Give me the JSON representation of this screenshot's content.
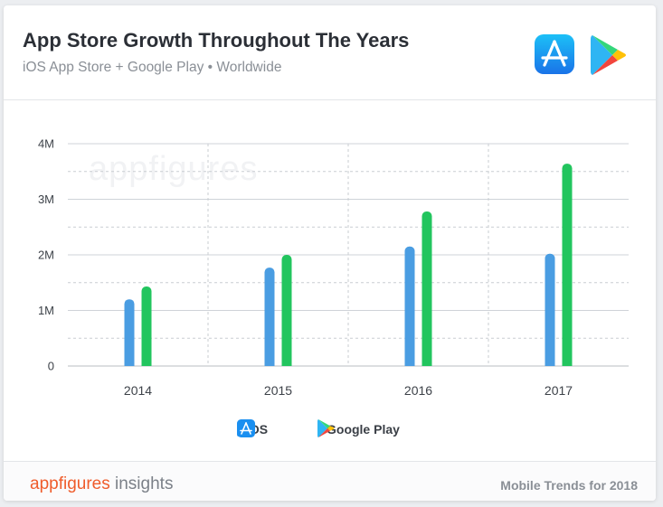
{
  "header": {
    "title": "App Store Growth Throughout The Years",
    "subtitle": "iOS App Store + Google Play • Worldwide",
    "icons": [
      "app-store-icon",
      "google-play-icon"
    ]
  },
  "watermark": "appfigures",
  "footer": {
    "brand_primary": "appfigures",
    "brand_secondary": "insights",
    "note": "Mobile Trends for 2018"
  },
  "colors": {
    "ios": "#4a9de2",
    "google_play": "#22c55e",
    "brand": "#ef5c2b"
  },
  "chart_data": {
    "type": "bar",
    "title": "App Store Growth Throughout The Years",
    "subtitle": "iOS App Store + Google Play • Worldwide",
    "xlabel": "",
    "ylabel": "",
    "categories": [
      "2014",
      "2015",
      "2016",
      "2017"
    ],
    "series": [
      {
        "name": "iOS",
        "color": "#4a9de2",
        "values": [
          1.2,
          1.77,
          2.15,
          2.02
        ]
      },
      {
        "name": "Google Play",
        "color": "#22c55e",
        "values": [
          1.43,
          2.0,
          2.78,
          3.64
        ]
      }
    ],
    "ylim": [
      0,
      4
    ],
    "yticks": [
      0,
      1,
      2,
      3,
      4
    ],
    "ytick_labels": [
      "0",
      "1M",
      "2M",
      "3M",
      "4M"
    ],
    "grid": true,
    "legend_position": "bottom-center"
  }
}
